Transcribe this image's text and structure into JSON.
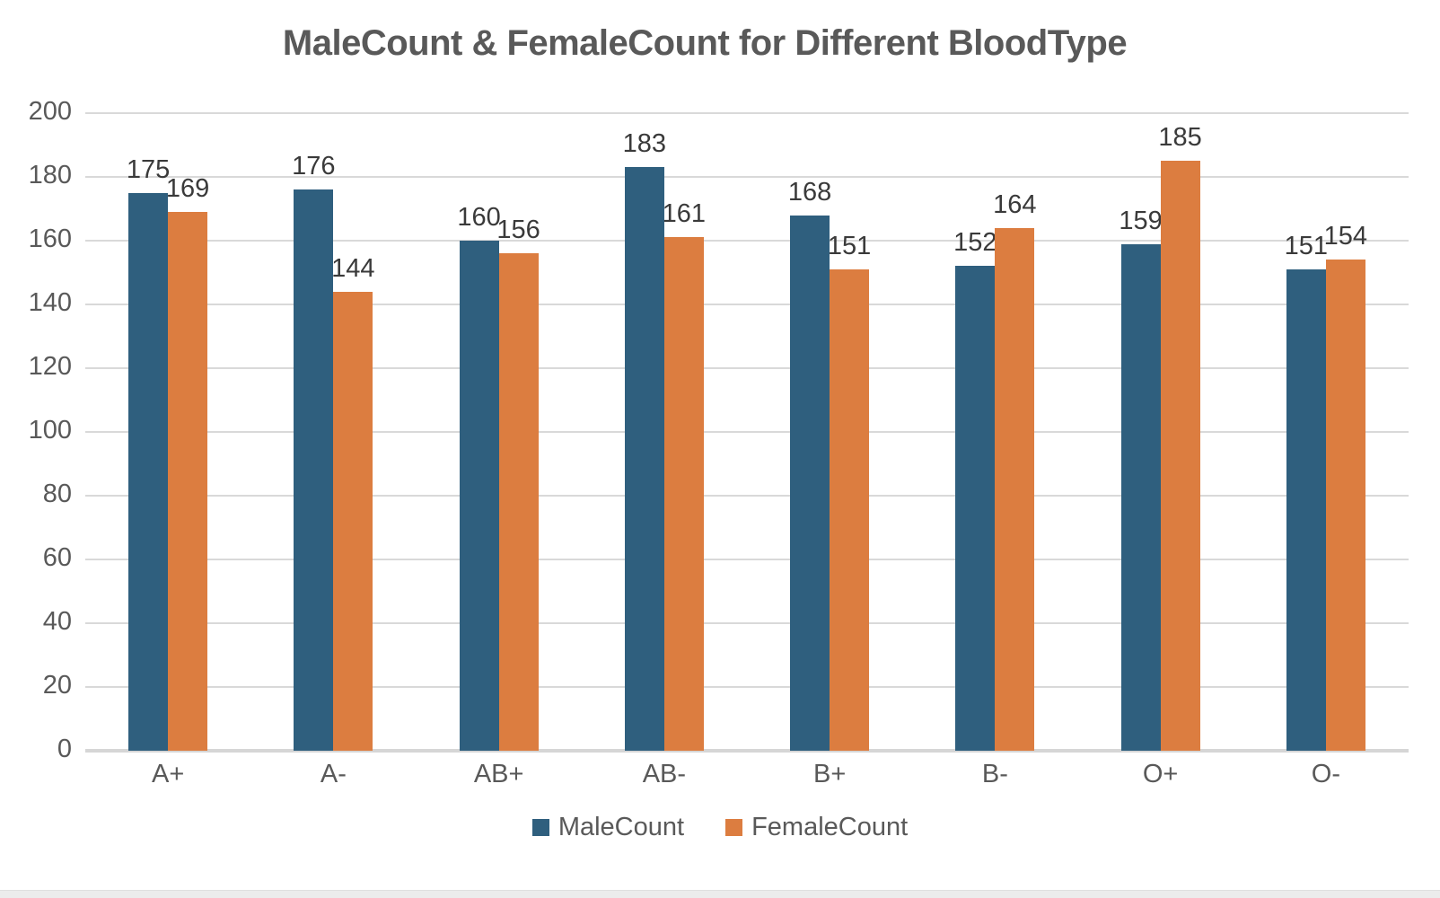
{
  "title": "MaleCount & FemaleCount for Different BloodType",
  "chart_data": {
    "type": "bar",
    "title": "MaleCount & FemaleCount for Different BloodType",
    "categories": [
      "A+",
      "A-",
      "AB+",
      "AB-",
      "B+",
      "B-",
      "O+",
      "O-"
    ],
    "series": [
      {
        "name": "MaleCount",
        "color": "#2F5F7E",
        "values": [
          175,
          176,
          160,
          183,
          168,
          152,
          159,
          151
        ]
      },
      {
        "name": "FemaleCount",
        "color": "#DC7D40",
        "values": [
          169,
          144,
          156,
          161,
          151,
          164,
          185,
          154
        ]
      }
    ],
    "xlabel": "",
    "ylabel": "",
    "ylim": [
      0,
      200
    ],
    "yticks": [
      0,
      20,
      40,
      60,
      80,
      100,
      120,
      140,
      160,
      180,
      200
    ],
    "grid": true,
    "data_labels": true,
    "legend_position": "bottom"
  },
  "colors": {
    "male": "#2F5F7E",
    "female": "#DC7D40",
    "title_text": "#595959",
    "axis_text": "#595959",
    "data_label_text": "#3a3a3a",
    "gridline": "#d9d9d9",
    "background": "#ffffff"
  }
}
